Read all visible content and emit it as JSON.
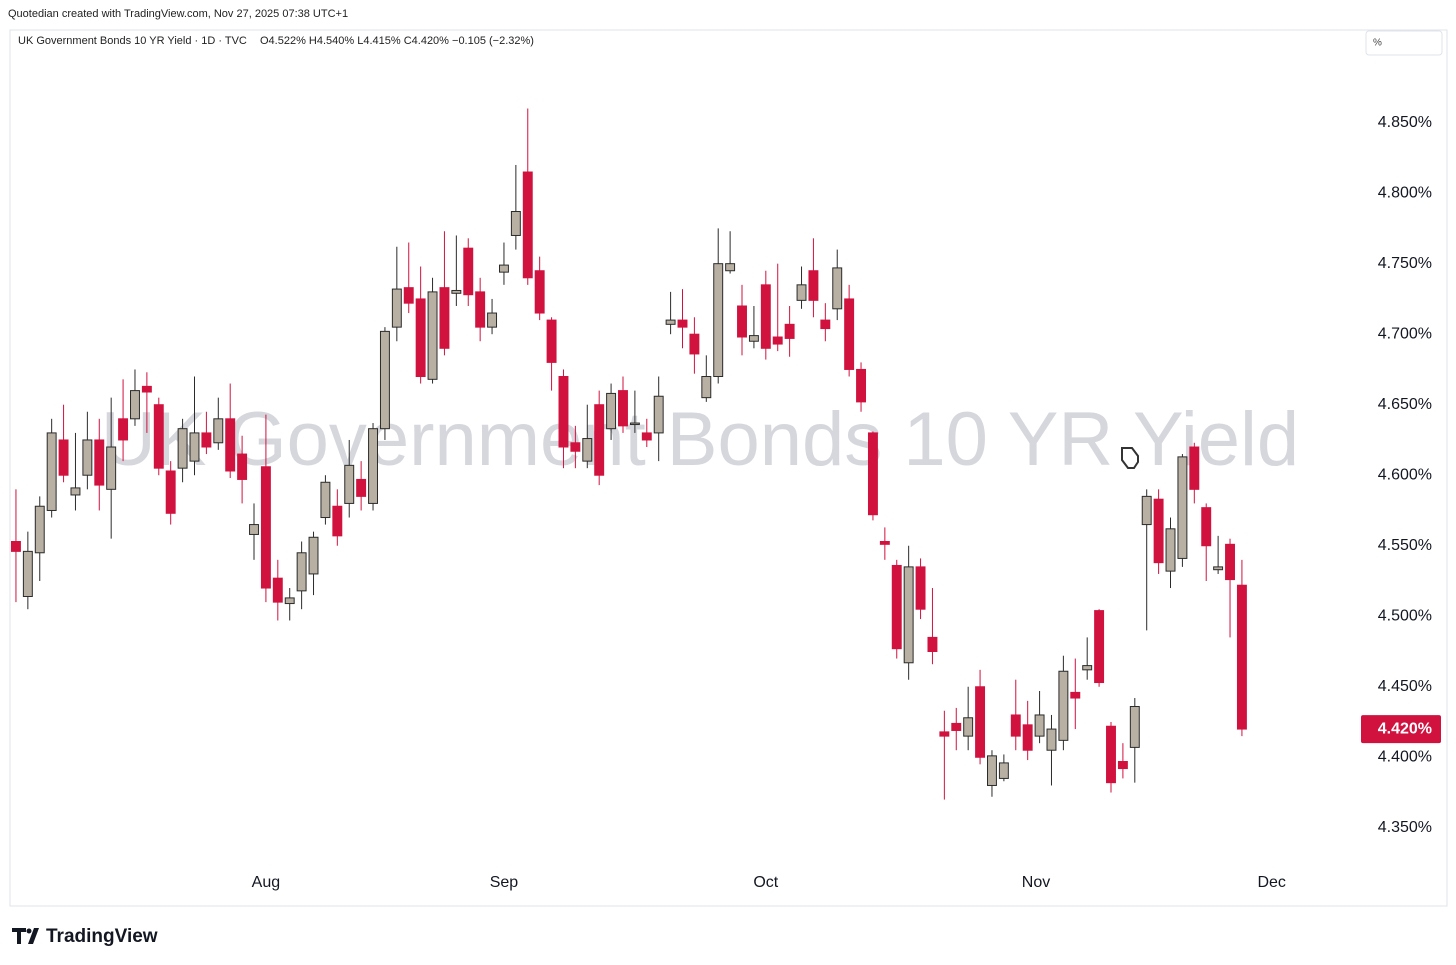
{
  "header": {
    "credit": "Quotedian created with TradingView.com, Nov 27, 2025 07:38 UTC+1",
    "logo": "TradingView",
    "unit_box": "%"
  },
  "chart_data": {
    "type": "candlestick",
    "title": "UK Government Bonds 10 YR Yield · 1D · TVC",
    "ohlc_text": "O4.522% H4.540% L4.415% C4.420% −0.105 (−2.32%)",
    "watermark": "UK Government Bonds 10 YR Yield",
    "up_color": "#b8b0a3",
    "down_color": "#d1123f",
    "up_border": "#2b2b2b",
    "grid": false,
    "open": [
      4.553,
      4.514,
      4.545,
      4.575,
      4.625,
      4.586,
      4.6,
      4.625,
      4.59,
      4.64,
      4.64,
      4.663,
      4.65,
      4.603,
      4.605,
      4.61,
      4.63,
      4.623,
      4.64,
      4.615,
      4.558,
      4.606,
      4.527,
      4.509,
      4.518,
      4.53,
      4.57,
      4.578,
      4.58,
      4.597,
      4.58,
      4.633,
      4.705,
      4.733,
      4.725,
      4.668,
      4.733,
      4.729,
      4.761,
      4.73,
      4.705,
      4.744,
      4.77,
      4.815,
      4.745,
      4.71,
      4.67,
      4.623,
      4.61,
      4.65,
      4.633,
      4.66,
      4.636,
      4.63,
      4.63,
      4.707,
      4.71,
      4.7,
      4.655,
      4.67,
      4.745,
      4.72,
      4.695,
      4.735,
      4.698,
      4.707,
      4.724,
      4.745,
      4.71,
      4.718,
      4.725,
      4.675,
      4.63,
      4.553,
      4.536,
      4.467,
      4.535,
      4.485,
      4.418,
      4.424,
      4.415,
      4.45,
      4.38,
      4.385,
      4.43,
      4.423,
      4.415,
      4.405,
      4.412,
      4.446,
      4.462,
      4.504,
      4.422,
      4.397,
      4.407,
      4.565,
      4.583,
      4.532,
      4.541,
      4.62,
      4.577,
      4.533,
      4.551,
      4.522
    ],
    "high": [
      4.59,
      4.56,
      4.585,
      4.64,
      4.65,
      4.63,
      4.645,
      4.64,
      4.655,
      4.668,
      4.675,
      4.673,
      4.655,
      4.61,
      4.64,
      4.67,
      4.645,
      4.655,
      4.665,
      4.628,
      4.58,
      4.643,
      4.54,
      4.52,
      4.553,
      4.56,
      4.6,
      4.59,
      4.625,
      4.61,
      4.637,
      4.705,
      4.762,
      4.765,
      4.748,
      4.74,
      4.773,
      4.77,
      4.768,
      4.74,
      4.725,
      4.765,
      4.82,
      4.86,
      4.755,
      4.712,
      4.675,
      4.635,
      4.65,
      4.66,
      4.665,
      4.67,
      4.66,
      4.64,
      4.67,
      4.73,
      4.732,
      4.712,
      4.685,
      4.775,
      4.773,
      4.735,
      4.72,
      4.745,
      4.75,
      4.72,
      4.748,
      4.768,
      4.722,
      4.76,
      4.735,
      4.68,
      4.631,
      4.563,
      4.54,
      4.55,
      4.541,
      4.52,
      4.433,
      4.435,
      4.45,
      4.462,
      4.405,
      4.402,
      4.455,
      4.44,
      4.447,
      4.43,
      4.472,
      4.47,
      4.485,
      4.505,
      4.425,
      4.41,
      4.442,
      4.59,
      4.59,
      4.57,
      4.615,
      4.623,
      4.58,
      4.557,
      4.555,
      4.54
    ],
    "low": [
      4.51,
      4.505,
      4.525,
      4.57,
      4.595,
      4.575,
      4.59,
      4.575,
      4.555,
      4.61,
      4.635,
      4.63,
      4.6,
      4.565,
      4.595,
      4.6,
      4.615,
      4.618,
      4.598,
      4.58,
      4.54,
      4.51,
      4.497,
      4.497,
      4.505,
      4.515,
      4.565,
      4.55,
      4.57,
      4.575,
      4.575,
      4.625,
      4.695,
      4.715,
      4.665,
      4.665,
      4.685,
      4.72,
      4.72,
      4.695,
      4.7,
      4.735,
      4.76,
      4.735,
      4.71,
      4.66,
      4.605,
      4.605,
      4.605,
      4.593,
      4.625,
      4.63,
      4.63,
      4.62,
      4.61,
      4.7,
      4.69,
      4.672,
      4.652,
      4.665,
      4.743,
      4.685,
      4.69,
      4.682,
      4.688,
      4.684,
      4.718,
      4.712,
      4.695,
      4.71,
      4.67,
      4.645,
      4.568,
      4.54,
      4.47,
      4.455,
      4.498,
      4.466,
      4.37,
      4.405,
      4.405,
      4.395,
      4.372,
      4.383,
      4.405,
      4.398,
      4.41,
      4.38,
      4.405,
      4.42,
      4.455,
      4.45,
      4.375,
      4.385,
      4.382,
      4.49,
      4.53,
      4.52,
      4.535,
      4.58,
      4.525,
      4.53,
      4.485,
      4.415
    ],
    "close": [
      4.546,
      4.546,
      4.578,
      4.63,
      4.6,
      4.591,
      4.625,
      4.593,
      4.62,
      4.625,
      4.66,
      4.659,
      4.605,
      4.573,
      4.633,
      4.63,
      4.62,
      4.64,
      4.603,
      4.597,
      4.565,
      4.52,
      4.51,
      4.513,
      4.545,
      4.556,
      4.595,
      4.557,
      4.607,
      4.585,
      4.633,
      4.702,
      4.732,
      4.722,
      4.67,
      4.73,
      4.69,
      4.731,
      4.728,
      4.705,
      4.715,
      4.749,
      4.787,
      4.74,
      4.715,
      4.68,
      4.62,
      4.617,
      4.626,
      4.6,
      4.658,
      4.635,
      4.637,
      4.625,
      4.656,
      4.71,
      4.705,
      4.686,
      4.67,
      4.75,
      4.75,
      4.698,
      4.699,
      4.69,
      4.693,
      4.697,
      4.735,
      4.724,
      4.704,
      4.747,
      4.675,
      4.652,
      4.572,
      4.551,
      4.477,
      4.535,
      4.505,
      4.475,
      4.415,
      4.419,
      4.428,
      4.4,
      4.401,
      4.396,
      4.415,
      4.405,
      4.43,
      4.42,
      4.461,
      4.442,
      4.465,
      4.453,
      4.382,
      4.392,
      4.436,
      4.585,
      4.538,
      4.562,
      4.613,
      4.59,
      4.55,
      4.535,
      4.526,
      4.42
    ],
    "last_price": {
      "value": 4.42,
      "label": "4.420%"
    },
    "xlim": [
      -0.5,
      112.5
    ],
    "xticks": [
      {
        "value": 21,
        "label": "Aug"
      },
      {
        "value": 41,
        "label": "Sep"
      },
      {
        "value": 63,
        "label": "Oct"
      },
      {
        "value": 85.7,
        "label": "Nov"
      },
      {
        "value": 105.5,
        "label": "Dec"
      }
    ],
    "ylim": [
      4.3229,
      4.9157
    ],
    "yticks": [
      {
        "value": 4.35,
        "label": "4.350%"
      },
      {
        "value": 4.4,
        "label": "4.400%"
      },
      {
        "value": 4.45,
        "label": "4.450%"
      },
      {
        "value": 4.5,
        "label": "4.500%"
      },
      {
        "value": 4.55,
        "label": "4.550%"
      },
      {
        "value": 4.6,
        "label": "4.600%"
      },
      {
        "value": 4.65,
        "label": "4.650%"
      },
      {
        "value": 4.7,
        "label": "4.700%"
      },
      {
        "value": 4.75,
        "label": "4.750%"
      },
      {
        "value": 4.8,
        "label": "4.800%"
      },
      {
        "value": 4.85,
        "label": "4.850%"
      }
    ]
  }
}
